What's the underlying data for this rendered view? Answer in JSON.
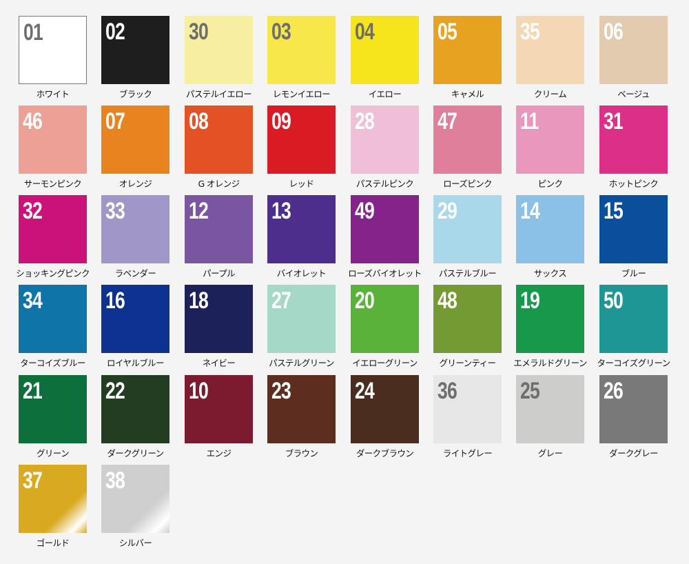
{
  "swatches": [
    {
      "code": "01",
      "name": "ホワイト",
      "color": "#ffffff",
      "text": "#6e6e6e",
      "border": "#777777"
    },
    {
      "code": "02",
      "name": "ブラック",
      "color": "#1e1e1e",
      "text": "#ffffff"
    },
    {
      "code": "30",
      "name": "パステルイエロー",
      "color": "#f7ef9f",
      "text": "#6e6e6e"
    },
    {
      "code": "03",
      "name": "レモンイエロー",
      "color": "#f7e74b",
      "text": "#6e6e6e"
    },
    {
      "code": "04",
      "name": "イエロー",
      "color": "#f6e51c",
      "text": "#6e6e6e"
    },
    {
      "code": "05",
      "name": "キャメル",
      "color": "#e8a221",
      "text": "#ffffff"
    },
    {
      "code": "35",
      "name": "クリーム",
      "color": "#f4d8b3",
      "text": "#ffffff"
    },
    {
      "code": "06",
      "name": "ベージュ",
      "color": "#e3cbb0",
      "text": "#ffffff"
    },
    {
      "code": "46",
      "name": "サーモンピンク",
      "color": "#eca096",
      "text": "#ffffff"
    },
    {
      "code": "07",
      "name": "オレンジ",
      "color": "#e8841f",
      "text": "#ffffff"
    },
    {
      "code": "08",
      "name": "G オレンジ",
      "color": "#e25224",
      "text": "#ffffff"
    },
    {
      "code": "09",
      "name": "レッド",
      "color": "#d91c24",
      "text": "#ffffff"
    },
    {
      "code": "28",
      "name": "パステルピンク",
      "color": "#eebfd6",
      "text": "#ffffff"
    },
    {
      "code": "47",
      "name": "ローズピンク",
      "color": "#df7f9c",
      "text": "#ffffff"
    },
    {
      "code": "11",
      "name": "ピンク",
      "color": "#e997bd",
      "text": "#ffffff"
    },
    {
      "code": "31",
      "name": "ホットピンク",
      "color": "#db2f88",
      "text": "#ffffff"
    },
    {
      "code": "32",
      "name": "ショッキングピンク",
      "color": "#cb127a",
      "text": "#ffffff"
    },
    {
      "code": "33",
      "name": "ラベンダー",
      "color": "#a196c8",
      "text": "#ffffff"
    },
    {
      "code": "12",
      "name": "パープル",
      "color": "#7a56a0",
      "text": "#ffffff"
    },
    {
      "code": "13",
      "name": "バイオレット",
      "color": "#4e2e8c",
      "text": "#ffffff"
    },
    {
      "code": "49",
      "name": "ローズバイオレット",
      "color": "#84248a",
      "text": "#ffffff"
    },
    {
      "code": "29",
      "name": "パステルブルー",
      "color": "#a8d8ea",
      "text": "#ffffff"
    },
    {
      "code": "14",
      "name": "サックス",
      "color": "#8bc1e6",
      "text": "#ffffff"
    },
    {
      "code": "15",
      "name": "ブルー",
      "color": "#0a4f9c",
      "text": "#ffffff"
    },
    {
      "code": "34",
      "name": "ターコイズブルー",
      "color": "#0f75a8",
      "text": "#ffffff"
    },
    {
      "code": "16",
      "name": "ロイヤルブルー",
      "color": "#0e3291",
      "text": "#ffffff"
    },
    {
      "code": "18",
      "name": "ネイビー",
      "color": "#1c2159",
      "text": "#ffffff"
    },
    {
      "code": "27",
      "name": "パステルグリーン",
      "color": "#a6d8c8",
      "text": "#ffffff"
    },
    {
      "code": "20",
      "name": "イエローグリーン",
      "color": "#5bb23a",
      "text": "#ffffff"
    },
    {
      "code": "48",
      "name": "グリーンティー",
      "color": "#739a33",
      "text": "#ffffff"
    },
    {
      "code": "19",
      "name": "エメラルドグリーン",
      "color": "#17994b",
      "text": "#ffffff"
    },
    {
      "code": "50",
      "name": "ターコイズグリーン",
      "color": "#1f9696",
      "text": "#ffffff"
    },
    {
      "code": "21",
      "name": "グリーン",
      "color": "#0c6f3c",
      "text": "#ffffff"
    },
    {
      "code": "22",
      "name": "ダークグリーン",
      "color": "#223d22",
      "text": "#ffffff"
    },
    {
      "code": "10",
      "name": "エンジ",
      "color": "#7c1b2f",
      "text": "#ffffff"
    },
    {
      "code": "23",
      "name": "ブラウン",
      "color": "#5d2e1f",
      "text": "#ffffff"
    },
    {
      "code": "24",
      "name": "ダークブラウン",
      "color": "#4b2d20",
      "text": "#ffffff"
    },
    {
      "code": "36",
      "name": "ライトグレー",
      "color": "#e6e7e6",
      "text": "#6e6e6e"
    },
    {
      "code": "25",
      "name": "グレー",
      "color": "#cdcdcc",
      "text": "#6e6e6e"
    },
    {
      "code": "26",
      "name": "ダークグレー",
      "color": "#7a797a",
      "text": "#ffffff"
    },
    {
      "code": "37",
      "name": "ゴールド",
      "color": "#d9a920",
      "text": "#ffffff",
      "shine": true
    },
    {
      "code": "38",
      "name": "シルバー",
      "color": "#cfcfd0",
      "text": "#ffffff",
      "shine": true
    }
  ]
}
